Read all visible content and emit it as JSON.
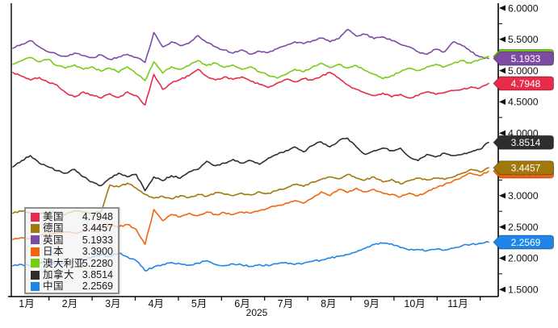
{
  "chart_data": {
    "type": "line",
    "year_label": "2025",
    "grid": false,
    "legend_position": "bottom-left",
    "x_axis": {
      "month_labels": [
        "1月",
        "2月",
        "3月",
        "4月",
        "5月",
        "6月",
        "7月",
        "8月",
        "9月",
        "10月",
        "11月"
      ]
    },
    "y_axis": {
      "side": "right",
      "min": 1.5,
      "max": 6.0,
      "tick_step": 0.5,
      "tick_labels": [
        "6.0000",
        "5.5000",
        "5.0000",
        "4.5000",
        "4.0000",
        "3.5000",
        "3.0000",
        "2.5000",
        "2.0000",
        "1.5000"
      ],
      "labels_hidden_by_tags": [
        "3.5000"
      ]
    },
    "series": [
      {
        "key": "us",
        "name": "美国",
        "color": "#e82a4b",
        "last_label": "4.7948",
        "last_value": 4.7948,
        "values": [
          4.97,
          4.91,
          4.85,
          4.89,
          4.81,
          4.77,
          4.65,
          4.58,
          4.66,
          4.61,
          4.56,
          4.63,
          4.57,
          4.66,
          4.6,
          4.45,
          4.94,
          4.7,
          4.8,
          4.86,
          4.92,
          5.02,
          4.91,
          4.85,
          4.9,
          4.86,
          4.9,
          4.83,
          4.78,
          4.73,
          4.8,
          4.86,
          4.82,
          4.87,
          4.85,
          4.91,
          4.97,
          4.88,
          4.77,
          4.7,
          4.64,
          4.6,
          4.64,
          4.58,
          4.62,
          4.56,
          4.6,
          4.66,
          4.62,
          4.65,
          4.68,
          4.7,
          4.74,
          4.72,
          4.7948
        ]
      },
      {
        "key": "germany",
        "name": "德国",
        "color": "#a1780b",
        "last_label": "3.4457",
        "last_value": 3.4457,
        "values": [
          2.72,
          2.75,
          2.73,
          2.7,
          2.74,
          2.72,
          2.7,
          2.76,
          2.74,
          2.72,
          2.74,
          3.17,
          3.14,
          3.2,
          3.12,
          3.02,
          2.96,
          2.99,
          2.95,
          3.0,
          2.97,
          3.02,
          2.99,
          3.05,
          3.02,
          3.0,
          3.04,
          3.01,
          3.06,
          3.04,
          3.08,
          3.12,
          3.18,
          3.15,
          3.22,
          3.26,
          3.3,
          3.27,
          3.34,
          3.28,
          3.25,
          3.3,
          3.22,
          3.26,
          3.19,
          3.24,
          3.28,
          3.25,
          3.28,
          3.26,
          3.3,
          3.36,
          3.42,
          3.38,
          3.4457
        ]
      },
      {
        "key": "uk",
        "name": "英国",
        "color": "#7e4ba4",
        "last_label": "5.1933",
        "last_value": 5.1933,
        "values": [
          5.36,
          5.42,
          5.48,
          5.38,
          5.3,
          5.26,
          5.23,
          5.28,
          5.24,
          5.21,
          5.25,
          5.18,
          5.22,
          5.26,
          5.21,
          5.13,
          5.61,
          5.38,
          5.46,
          5.4,
          5.44,
          5.56,
          5.45,
          5.38,
          5.33,
          5.28,
          5.33,
          5.26,
          5.31,
          5.29,
          5.35,
          5.4,
          5.46,
          5.43,
          5.48,
          5.52,
          5.46,
          5.51,
          5.66,
          5.55,
          5.58,
          5.51,
          5.54,
          5.48,
          5.42,
          5.38,
          5.3,
          5.26,
          5.34,
          5.3,
          5.46,
          5.4,
          5.3,
          5.22,
          5.1933
        ]
      },
      {
        "key": "japan",
        "name": "日本",
        "color": "#f2650c",
        "last_label": "3.3900",
        "last_value": 3.39,
        "values": [
          2.3,
          2.33,
          2.31,
          2.36,
          2.38,
          2.4,
          2.42,
          2.4,
          2.44,
          2.47,
          2.5,
          2.53,
          2.5,
          2.54,
          2.46,
          2.22,
          2.78,
          2.6,
          2.7,
          2.66,
          2.72,
          2.68,
          2.74,
          2.7,
          2.73,
          2.7,
          2.74,
          2.72,
          2.76,
          2.8,
          2.84,
          2.88,
          2.92,
          2.88,
          2.96,
          3.06,
          3.0,
          3.1,
          3.05,
          3.12,
          3.06,
          3.1,
          3.04,
          3.02,
          2.98,
          3.04,
          3.0,
          3.06,
          3.12,
          3.18,
          3.24,
          3.3,
          3.36,
          3.32,
          3.39
        ]
      },
      {
        "key": "australia",
        "name": "澳大利亚",
        "color": "#76cd13",
        "last_label": "5.2280",
        "last_value": 5.228,
        "values": [
          5.1,
          5.16,
          5.21,
          5.14,
          5.18,
          5.08,
          5.04,
          5.09,
          5.02,
          5.06,
          4.99,
          5.04,
          4.97,
          5.06,
          4.95,
          4.84,
          5.14,
          4.96,
          5.06,
          5.02,
          5.08,
          5.16,
          5.08,
          5.12,
          5.05,
          5.09,
          5.02,
          5.06,
          4.98,
          4.92,
          4.88,
          4.94,
          5.02,
          4.98,
          5.06,
          5.12,
          5.05,
          5.1,
          5.04,
          5.08,
          5.0,
          4.94,
          4.87,
          4.92,
          4.98,
          5.04,
          5.0,
          5.06,
          5.1,
          5.06,
          5.12,
          5.16,
          5.12,
          5.18,
          5.228
        ]
      },
      {
        "key": "canada",
        "name": "加拿大",
        "color": "#2e2e2e",
        "last_label": "3.8514",
        "last_value": 3.8514,
        "values": [
          3.46,
          3.56,
          3.64,
          3.52,
          3.46,
          3.4,
          3.36,
          3.42,
          3.3,
          3.22,
          3.16,
          3.28,
          3.36,
          3.3,
          3.34,
          3.08,
          3.3,
          3.24,
          3.32,
          3.28,
          3.38,
          3.42,
          3.55,
          3.48,
          3.52,
          3.58,
          3.52,
          3.56,
          3.5,
          3.6,
          3.66,
          3.72,
          3.78,
          3.7,
          3.8,
          3.86,
          3.78,
          3.88,
          3.92,
          3.78,
          3.66,
          3.72,
          3.76,
          3.72,
          3.76,
          3.62,
          3.56,
          3.66,
          3.62,
          3.68,
          3.64,
          3.66,
          3.7,
          3.74,
          3.8514
        ]
      },
      {
        "key": "china",
        "name": "中国",
        "color": "#1e86e8",
        "last_label": "2.2569",
        "last_value": 2.2569,
        "values": [
          1.88,
          1.9,
          1.87,
          1.92,
          1.94,
          1.9,
          1.93,
          1.95,
          1.98,
          2.02,
          2.06,
          2.04,
          2.08,
          2.02,
          1.96,
          1.8,
          1.86,
          1.9,
          1.93,
          1.91,
          1.89,
          1.92,
          1.96,
          1.9,
          1.88,
          1.91,
          1.89,
          1.87,
          1.9,
          1.88,
          1.91,
          1.93,
          1.9,
          1.92,
          1.95,
          1.97,
          2.0,
          2.03,
          2.06,
          2.1,
          2.16,
          2.22,
          2.24,
          2.23,
          2.17,
          2.13,
          2.14,
          2.12,
          2.14,
          2.13,
          2.16,
          2.2,
          2.22,
          2.24,
          2.2569
        ]
      }
    ],
    "tag_draw_order": [
      "australia",
      "uk",
      "japan",
      "germany",
      "us",
      "canada",
      "china"
    ]
  }
}
